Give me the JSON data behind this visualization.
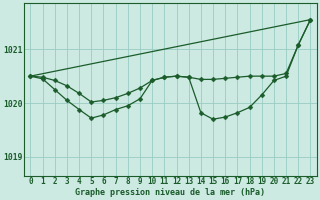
{
  "title": "Graphe pression niveau de la mer (hPa)",
  "bg_color": "#cce9e2",
  "grid_color": "#99ccc4",
  "line_color": "#1a5c2a",
  "ylabel_ticks": [
    1019,
    1020,
    1021
  ],
  "xlim": [
    -0.5,
    23.5
  ],
  "ylim": [
    1018.65,
    1021.85
  ],
  "x_hours": [
    0,
    1,
    2,
    3,
    4,
    5,
    6,
    7,
    8,
    9,
    10,
    11,
    12,
    13,
    14,
    15,
    16,
    17,
    18,
    19,
    20,
    21,
    22,
    23
  ],
  "pressure_jagged": [
    1020.5,
    1020.45,
    1020.25,
    1020.05,
    1019.88,
    1019.72,
    1019.78,
    1019.88,
    1019.95,
    1020.08,
    1020.42,
    1020.48,
    1020.5,
    1020.48,
    1019.82,
    1019.7,
    1019.74,
    1019.82,
    1019.92,
    1020.15,
    1020.42,
    1020.5,
    1021.08,
    1021.55
  ],
  "pressure_smooth": [
    1020.5,
    1020.48,
    1020.42,
    1020.32,
    1020.18,
    1020.02,
    1020.05,
    1020.1,
    1020.18,
    1020.28,
    1020.42,
    1020.48,
    1020.5,
    1020.48,
    1020.44,
    1020.44,
    1020.46,
    1020.48,
    1020.5,
    1020.5,
    1020.5,
    1020.55,
    1021.08,
    1021.55
  ],
  "trend_x": [
    0,
    23
  ],
  "trend_y": [
    1020.5,
    1021.55
  ],
  "figsize": [
    3.2,
    2.0
  ],
  "dpi": 100,
  "tick_fontsize": 5.5,
  "label_fontsize": 6.0,
  "linewidth": 0.9,
  "markersize": 2.5
}
